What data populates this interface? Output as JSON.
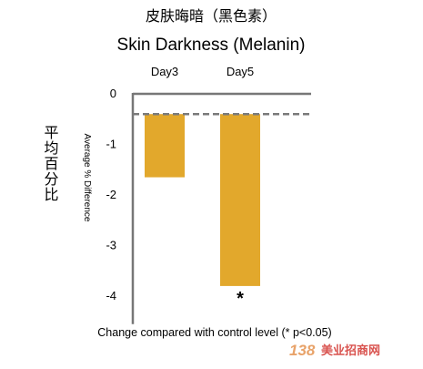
{
  "title_cn": "皮肤晦暗（黑色素）",
  "chart_data": {
    "type": "bar",
    "title": "Skin Darkness (Melanin)",
    "categories": [
      "Day3",
      "Day5"
    ],
    "series": [
      {
        "values": [
          -1.65,
          -3.8
        ]
      }
    ],
    "baseline": -0.4,
    "ylim": [
      -4.5,
      0
    ],
    "yticks": [
      "0",
      "-1",
      "-2",
      "-3",
      "-4"
    ],
    "ylabel": "Average % Difference",
    "ylabel_cn": "平均百分比",
    "significance": [
      "",
      "*"
    ],
    "xlabel": "Change compared with control level (* p<0.05)",
    "bar_color": "#e2a82c",
    "baseline_color": "#7a7a7a",
    "axis_color": "#777777",
    "grid": false,
    "legend": "none"
  },
  "watermark": {
    "number": "138",
    "text": "美业招商网"
  }
}
